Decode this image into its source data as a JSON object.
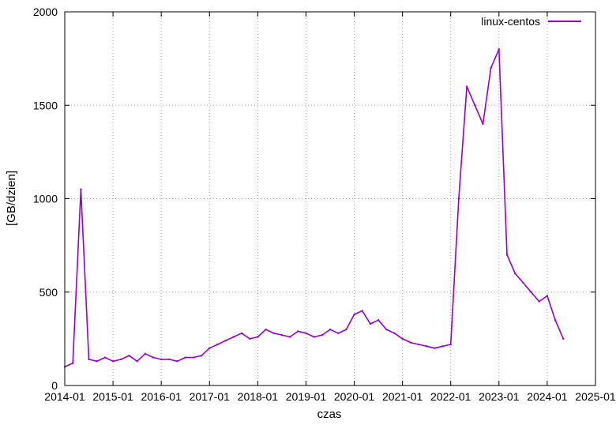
{
  "chart_data": {
    "type": "line",
    "xlabel": "czas",
    "ylabel": "[GB/dzien]",
    "xlim": [
      "2014-01",
      "2025-01"
    ],
    "ylim": [
      0,
      2000
    ],
    "x_ticks": [
      "2014-01",
      "2015-01",
      "2016-01",
      "2017-01",
      "2018-01",
      "2019-01",
      "2020-01",
      "2021-01",
      "2022-01",
      "2023-01",
      "2024-01",
      "2025-01"
    ],
    "y_ticks": [
      0,
      500,
      1000,
      1500,
      2000
    ],
    "grid": true,
    "legend": "top-right",
    "series": [
      {
        "name": "linux-centos",
        "color": "#9400d3",
        "x": [
          "2014-01",
          "2014-03",
          "2014-05",
          "2014-07",
          "2014-09",
          "2014-11",
          "2015-01",
          "2015-03",
          "2015-05",
          "2015-07",
          "2015-09",
          "2015-11",
          "2016-01",
          "2016-03",
          "2016-05",
          "2016-07",
          "2016-09",
          "2016-11",
          "2017-01",
          "2017-03",
          "2017-05",
          "2017-07",
          "2017-09",
          "2017-11",
          "2018-01",
          "2018-03",
          "2018-05",
          "2018-07",
          "2018-09",
          "2018-11",
          "2019-01",
          "2019-03",
          "2019-05",
          "2019-07",
          "2019-09",
          "2019-11",
          "2020-01",
          "2020-03",
          "2020-05",
          "2020-07",
          "2020-09",
          "2020-11",
          "2021-01",
          "2021-03",
          "2021-05",
          "2021-07",
          "2021-09",
          "2021-11",
          "2022-01",
          "2022-03",
          "2022-05",
          "2022-07",
          "2022-09",
          "2022-11",
          "2023-01",
          "2023-03",
          "2023-05",
          "2023-07",
          "2023-09",
          "2023-11",
          "2024-01",
          "2024-03",
          "2024-05"
        ],
        "values": [
          100,
          120,
          1050,
          140,
          130,
          150,
          130,
          140,
          160,
          130,
          170,
          150,
          140,
          140,
          130,
          150,
          150,
          160,
          200,
          220,
          240,
          260,
          280,
          250,
          260,
          300,
          280,
          270,
          260,
          290,
          280,
          260,
          270,
          300,
          280,
          300,
          380,
          400,
          330,
          350,
          300,
          280,
          250,
          230,
          220,
          210,
          200,
          210,
          220,
          1000,
          1600,
          1500,
          1400,
          1700,
          1800,
          700,
          600,
          550,
          500,
          450,
          480,
          350,
          250
        ]
      }
    ]
  }
}
